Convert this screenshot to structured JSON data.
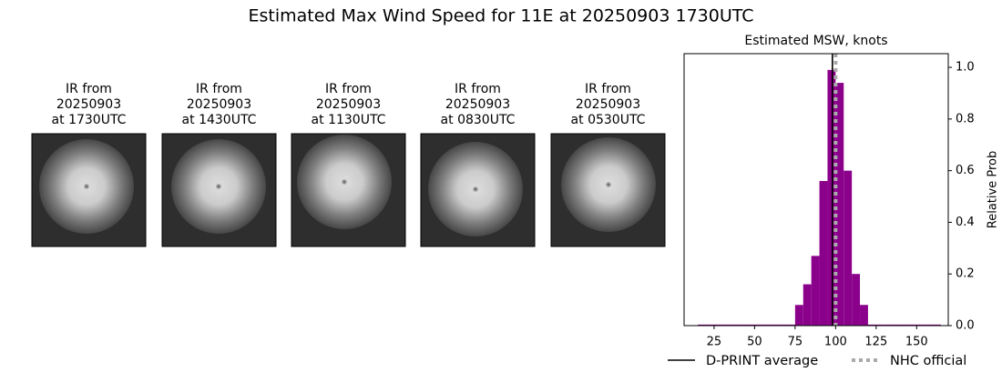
{
  "title": "Estimated Max Wind Speed for 11E at 20250903 1730UTC",
  "panels": [
    {
      "lines": [
        "IR from",
        "20250903",
        "at 1730UTC"
      ]
    },
    {
      "lines": [
        "IR from",
        "20250903",
        "at 1430UTC"
      ]
    },
    {
      "lines": [
        "IR from",
        "20250903",
        "at 1130UTC"
      ]
    },
    {
      "lines": [
        "IR from",
        "20250903",
        "at 0830UTC"
      ]
    },
    {
      "lines": [
        "IR from",
        "20250903",
        "at 0530UTC"
      ]
    }
  ],
  "chart_data": {
    "type": "histogram",
    "title": "Estimated MSW, knots",
    "ylabel": "Relative Prob",
    "color": "#8b008b",
    "bins": [
      15,
      20,
      25,
      30,
      35,
      40,
      45,
      50,
      55,
      60,
      65,
      70,
      75,
      80,
      85,
      90,
      95,
      100,
      105,
      110,
      115,
      120,
      125,
      130,
      135,
      140,
      145,
      150,
      155,
      160,
      165
    ],
    "values": [
      0.004,
      0.004,
      0.004,
      0.004,
      0.004,
      0.004,
      0.004,
      0.004,
      0.004,
      0.004,
      0.004,
      0.004,
      0.08,
      0.16,
      0.27,
      0.56,
      0.99,
      0.94,
      0.6,
      0.2,
      0.08,
      0.004,
      0.004,
      0.004,
      0.004,
      0.004,
      0.004,
      0.004,
      0.004,
      0.004
    ],
    "xlim": [
      6.5,
      169.5
    ],
    "ylim": [
      0,
      1.053
    ],
    "xticks": [
      25,
      50,
      75,
      100,
      125,
      150
    ],
    "yticks": [
      {
        "value": 0,
        "label": "0.0"
      },
      {
        "value": 0.2,
        "label": "0.2"
      },
      {
        "value": 0.4,
        "label": "0.4"
      },
      {
        "value": 0.6,
        "label": "0.6"
      },
      {
        "value": 0.8,
        "label": "0.8"
      },
      {
        "value": 1,
        "label": "1.0"
      }
    ],
    "lines": [
      {
        "name": "D-PRINT average",
        "x": 98,
        "color": "#000000",
        "style": "solid"
      },
      {
        "name": "NHC official",
        "x": 100,
        "color": "#aaaaaa",
        "style": "dotted"
      }
    ]
  }
}
